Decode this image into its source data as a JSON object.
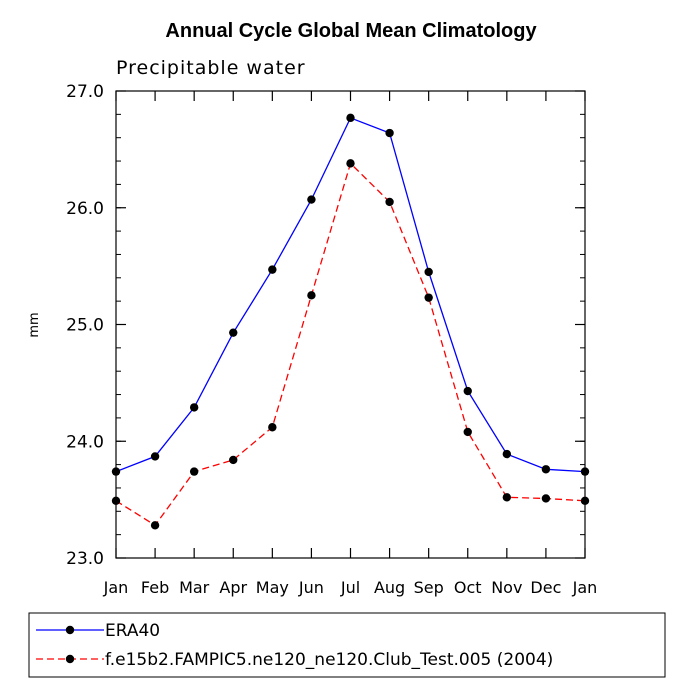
{
  "chart_data": {
    "type": "line",
    "title": "Annual Cycle Global Mean Climatology",
    "subtitle": "Precipitable water",
    "xlabel": "",
    "ylabel": "mm",
    "categories": [
      "Jan",
      "Feb",
      "Mar",
      "Apr",
      "May",
      "Jun",
      "Jul",
      "Aug",
      "Sep",
      "Oct",
      "Nov",
      "Dec",
      "Jan"
    ],
    "ylim": [
      23.0,
      27.0
    ],
    "yticks": [
      "23.0",
      "24.0",
      "25.0",
      "26.0",
      "27.0"
    ],
    "ytick_values": [
      23.0,
      24.0,
      25.0,
      26.0,
      27.0
    ],
    "yminor_step": 0.2,
    "series": [
      {
        "name": "ERA40",
        "color": "#0000ff",
        "dash": "solid",
        "values": [
          23.74,
          23.87,
          24.29,
          24.93,
          25.47,
          26.07,
          26.77,
          26.64,
          25.45,
          24.43,
          23.89,
          23.76,
          23.74
        ]
      },
      {
        "name": "f.e15b2.FAMPIC5.ne120_ne120.Club_Test.005 (2004)",
        "color": "#ff0000",
        "dash": "dashed",
        "values": [
          23.49,
          23.28,
          23.74,
          23.84,
          24.12,
          25.25,
          26.38,
          26.05,
          25.23,
          24.08,
          23.52,
          23.51,
          23.49
        ]
      }
    ],
    "legend": {
      "position": "bottom-left",
      "entries": [
        "ERA40",
        "f.e15b2.FAMPIC5.ne120_ne120.Club_Test.005 (2004)"
      ]
    }
  }
}
